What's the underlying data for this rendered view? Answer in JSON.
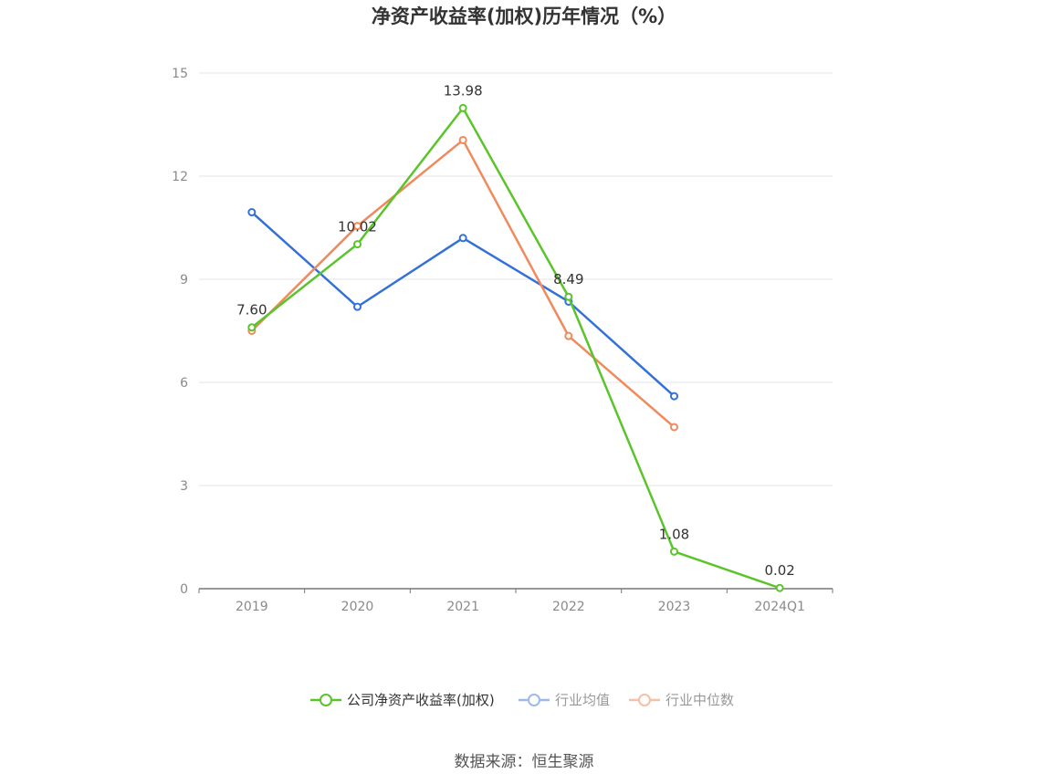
{
  "title": "净资产收益率(加权)历年情况（%）",
  "source": "数据来源：恒生聚源",
  "chart_data": {
    "type": "line",
    "title": "净资产收益率(加权)历年情况（%）",
    "categories": [
      "2019",
      "2020",
      "2021",
      "2022",
      "2023",
      "2024Q1"
    ],
    "ylim": [
      0,
      15
    ],
    "yticks": [
      0,
      3,
      6,
      9,
      12,
      15
    ],
    "grid": true,
    "legend_position": "bottom",
    "series": [
      {
        "name": "公司净资产收益率(加权)",
        "color": "#5ac42a",
        "values": [
          7.6,
          10.02,
          13.98,
          8.49,
          1.08,
          0.02
        ],
        "labels": [
          "7.60",
          "10.02",
          "13.98",
          "8.49",
          "1.08",
          "0.02"
        ]
      },
      {
        "name": "行业均值",
        "color": "#3470d9",
        "legend_color": "#9dbaea",
        "values": [
          10.95,
          8.2,
          10.2,
          8.35,
          5.6,
          null
        ]
      },
      {
        "name": "行业中位数",
        "color": "#f08a5d",
        "legend_color": "#f6bfa6",
        "values": [
          7.5,
          10.55,
          13.05,
          7.35,
          4.7,
          null
        ]
      }
    ]
  }
}
